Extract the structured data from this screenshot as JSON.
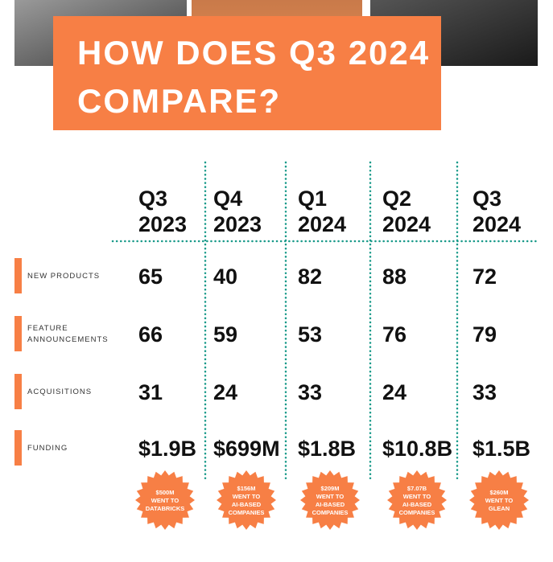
{
  "header": {
    "title_lines": [
      "HOW DOES Q3 2024",
      "COMPARE?"
    ]
  },
  "table": {
    "columns": [
      [
        "Q3",
        "2023"
      ],
      [
        "Q4",
        "2023"
      ],
      [
        "Q1",
        "2024"
      ],
      [
        "Q2",
        "2024"
      ],
      [
        "Q3",
        "2024"
      ]
    ],
    "rows": [
      {
        "label": [
          "NEW PRODUCTS"
        ],
        "cells": [
          "65",
          "40",
          "82",
          "88",
          "72"
        ]
      },
      {
        "label": [
          "FEATURE",
          "ANNOUNCEMENTS"
        ],
        "cells": [
          "66",
          "59",
          "53",
          "76",
          "79"
        ]
      },
      {
        "label": [
          "ACQUISITIONS"
        ],
        "cells": [
          "31",
          "24",
          "33",
          "24",
          "33"
        ]
      },
      {
        "label": [
          "FUNDING"
        ],
        "cells": [
          "$1.9B",
          "$699M",
          "$1.8B",
          "$10.8B",
          "$1.5B"
        ]
      }
    ],
    "badges": [
      [
        "$500M",
        "WENT TO",
        "DATABRICKS"
      ],
      [
        "$156M",
        "WENT TO",
        "AI-BASED",
        "COMPANIES"
      ],
      [
        "$209M",
        "WENT TO",
        "AI-BASED",
        "COMPANIES"
      ],
      [
        "$7.07B",
        "WENT TO",
        "AI-BASED",
        "COMPANIES"
      ],
      [
        "$260M",
        "WENT TO",
        "GLEAN"
      ]
    ]
  }
}
